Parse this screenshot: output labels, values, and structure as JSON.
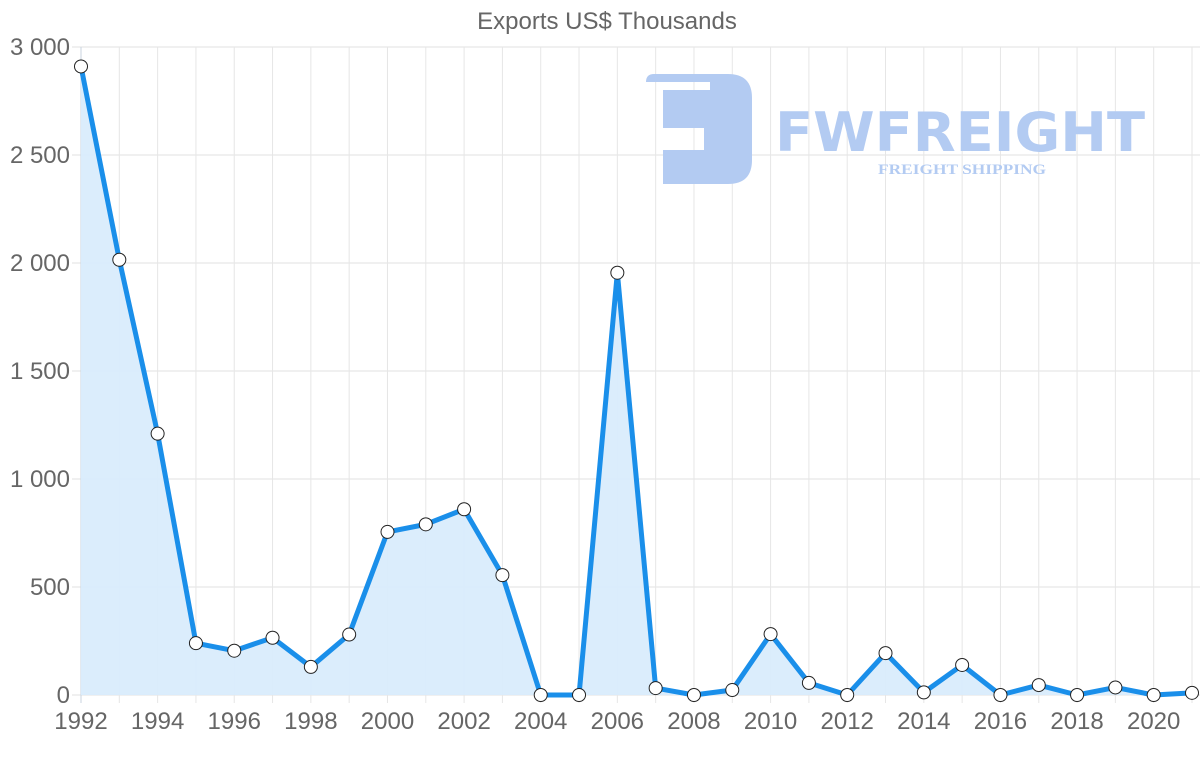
{
  "chart_data": {
    "type": "line",
    "title": "Exports US$ Thousands",
    "xlabel": "",
    "ylabel": "",
    "ylim": [
      0,
      3000
    ],
    "y_ticks": [
      "0",
      "500",
      "1 000",
      "1 500",
      "2 000",
      "2 500",
      "3 000"
    ],
    "x_tick_labels": [
      "1992",
      "1994",
      "1996",
      "1998",
      "2000",
      "2002",
      "2004",
      "2006",
      "2008",
      "2010",
      "2012",
      "2014",
      "2016",
      "2018",
      "2020"
    ],
    "grid": true,
    "legend": null,
    "fill": true,
    "categories": [
      1992,
      1993,
      1994,
      1995,
      1996,
      1997,
      1998,
      1999,
      2000,
      2001,
      2002,
      2003,
      2004,
      2005,
      2006,
      2007,
      2008,
      2009,
      2010,
      2011,
      2012,
      2013,
      2014,
      2015,
      2016,
      2017,
      2018,
      2019,
      2020,
      2021
    ],
    "series": [
      {
        "name": "Exports US$ Thousands",
        "color": "#1a8fea",
        "fill_color": "#d9ecfc",
        "values": [
          2910,
          2015,
          1210,
          240,
          205,
          265,
          130,
          280,
          755,
          790,
          860,
          555,
          0,
          0,
          1955,
          32,
          0,
          23,
          282,
          56,
          0,
          194,
          12,
          139,
          0,
          46,
          0,
          35,
          0,
          10
        ]
      }
    ]
  },
  "watermark": {
    "brand": "FWFREIGHT",
    "tagline": "FREIGHT SHIPPING",
    "color": "#b3cbf2"
  }
}
